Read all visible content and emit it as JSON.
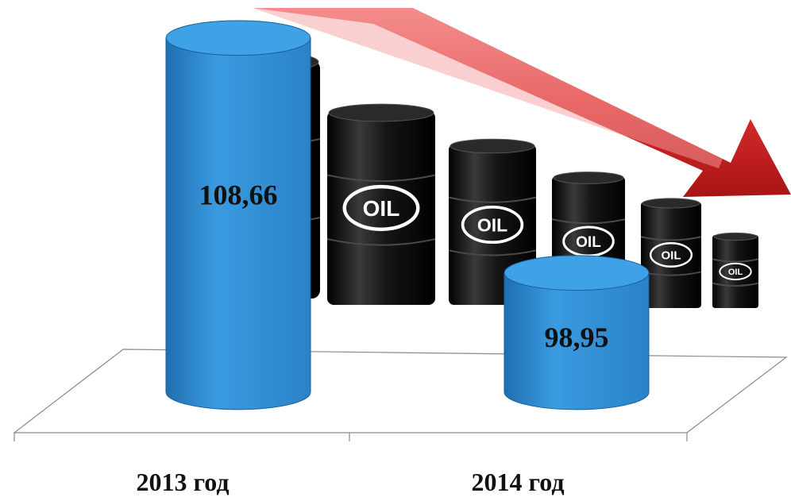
{
  "chart_data": {
    "type": "bar",
    "categories": [
      "2013 год",
      "2014 год"
    ],
    "values": [
      108.66,
      98.95
    ],
    "value_labels": [
      "108,66",
      "98,95"
    ],
    "title": "",
    "xlabel": "",
    "ylabel": "",
    "grid": false,
    "legend": "none",
    "colors": {
      "bar": "#2f8fd6",
      "arrow": "#d92b2b",
      "barrel": "#111111"
    }
  },
  "decor": {
    "barrel_label": "OIL"
  }
}
